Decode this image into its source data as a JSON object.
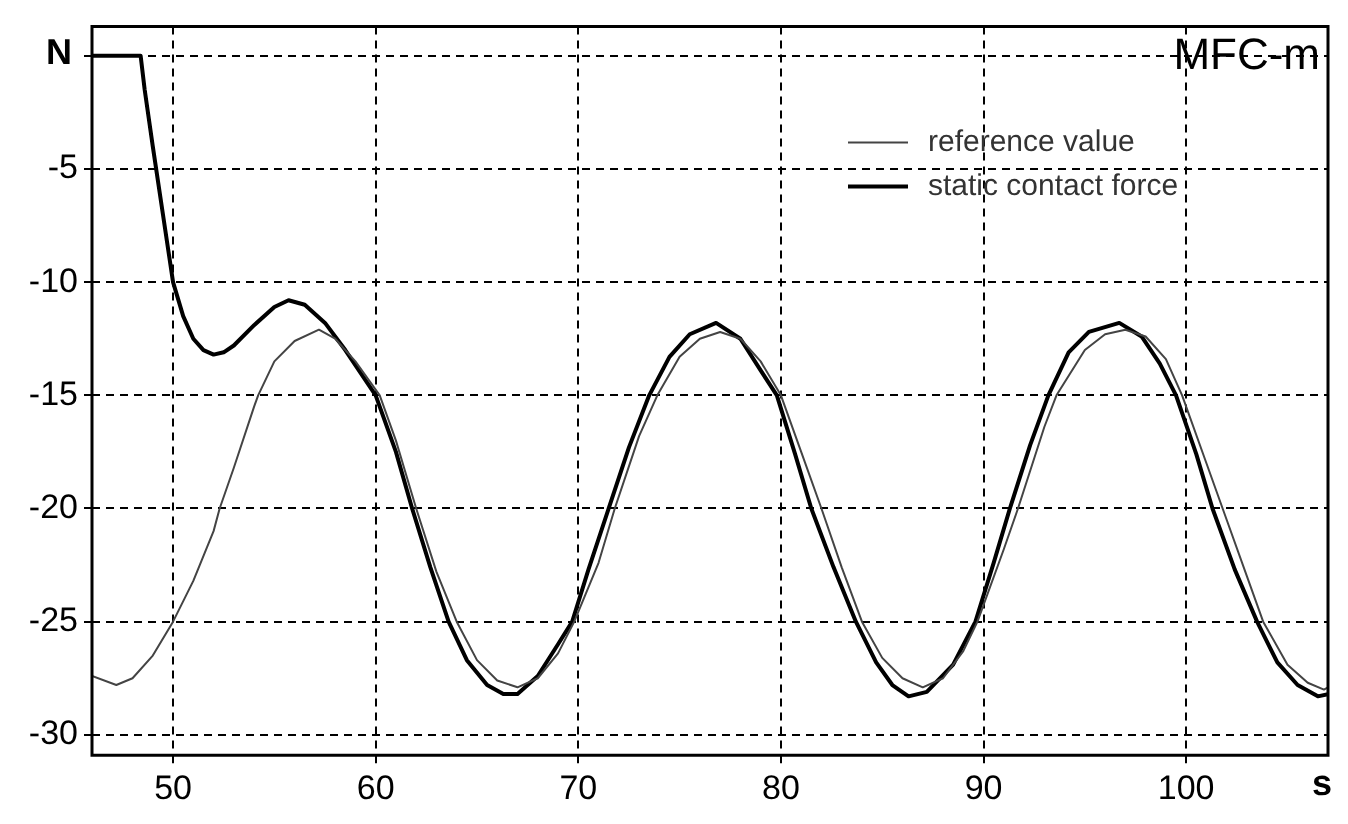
{
  "chart_data": {
    "type": "line",
    "xlabel": "s",
    "ylabel": "N",
    "annotations": [
      "MFC-m"
    ],
    "xlim": [
      46,
      107
    ],
    "xticks": [
      50,
      60,
      70,
      80,
      90,
      100
    ],
    "ylim": [
      -30.9,
      1.3
    ],
    "yticks": [
      {
        "value": 0,
        "label": null
      },
      -5,
      -10,
      -15,
      -20,
      -25,
      -30
    ],
    "grid": true,
    "legend": "top right",
    "marker": "none",
    "series": [
      {
        "name": "reference value",
        "color": "#444444",
        "x": [
          46,
          47.2,
          48,
          49,
          50,
          51,
          52,
          52.3,
          53,
          54,
          54.2,
          55,
          56,
          57.2,
          58,
          59,
          60.2,
          61,
          62,
          63,
          64,
          65,
          66,
          67,
          68,
          69,
          69.8,
          71,
          71.8,
          73,
          73.9,
          75,
          76,
          77,
          78,
          79,
          80,
          81,
          82,
          83,
          84,
          85,
          86,
          87,
          88,
          89,
          89.7,
          91,
          91.7,
          93,
          93.6,
          95,
          96,
          97,
          98,
          99,
          99.8,
          101,
          101.8,
          103,
          103.8,
          105,
          106,
          106.8,
          107
        ],
        "values": [
          -27.4,
          -27.8,
          -27.5,
          -26.5,
          -25,
          -23.2,
          -21,
          -20,
          -18.2,
          -15.5,
          -15,
          -13.5,
          -12.6,
          -12.1,
          -12.5,
          -13.5,
          -15,
          -17,
          -20,
          -22.8,
          -25,
          -26.7,
          -27.6,
          -27.9,
          -27.5,
          -26.4,
          -25,
          -22.4,
          -20,
          -16.8,
          -15,
          -13.3,
          -12.5,
          -12.2,
          -12.5,
          -13.5,
          -15,
          -17.5,
          -20,
          -22.6,
          -25,
          -26.6,
          -27.5,
          -27.9,
          -27.5,
          -26.3,
          -25,
          -21.8,
          -20,
          -16.4,
          -15,
          -13,
          -12.3,
          -12.1,
          -12.4,
          -13.4,
          -15,
          -18,
          -20,
          -23,
          -25,
          -26.9,
          -27.7,
          -28,
          -27.9
        ]
      },
      {
        "name": "static contact force",
        "color": "#000000",
        "x": [
          46,
          48.4,
          48.6,
          49,
          49.5,
          50,
          50.5,
          51,
          51.5,
          52,
          52.5,
          53,
          54,
          55,
          55.7,
          56.5,
          57.5,
          58.5,
          60,
          61,
          61.8,
          62.7,
          63.6,
          64.5,
          65.5,
          66.3,
          67,
          68,
          69,
          69.7,
          70.5,
          71.5,
          72.5,
          73.5,
          74.5,
          75.5,
          76.8,
          78,
          79,
          79.8,
          80.7,
          81.5,
          82.6,
          83.7,
          84.7,
          85.5,
          86.3,
          87.2,
          88.5,
          89.6,
          90.5,
          91.3,
          92.3,
          93.2,
          94.2,
          95.2,
          96.7,
          97.8,
          98.7,
          99.5,
          100.5,
          101.3,
          102.4,
          103.5,
          104.5,
          105.5,
          106.5,
          107
        ],
        "values": [
          0,
          0,
          -1.5,
          -4,
          -7,
          -10,
          -11.5,
          -12.5,
          -13,
          -13.2,
          -13.1,
          -12.8,
          -11.9,
          -11.1,
          -10.8,
          -11,
          -11.8,
          -13,
          -15,
          -17.5,
          -20,
          -22.6,
          -25,
          -26.7,
          -27.8,
          -28.2,
          -28.2,
          -27.4,
          -26,
          -25,
          -22.7,
          -20,
          -17.3,
          -15,
          -13.3,
          -12.3,
          -11.8,
          -12.5,
          -13.9,
          -15,
          -17.6,
          -20,
          -22.6,
          -25,
          -26.8,
          -27.8,
          -28.3,
          -28.1,
          -26.9,
          -25,
          -22.4,
          -20,
          -17.2,
          -15,
          -13.1,
          -12.2,
          -11.8,
          -12.4,
          -13.6,
          -15,
          -17.6,
          -20,
          -22.7,
          -25,
          -26.8,
          -27.8,
          -28.3,
          -28.2
        ]
      }
    ]
  }
}
